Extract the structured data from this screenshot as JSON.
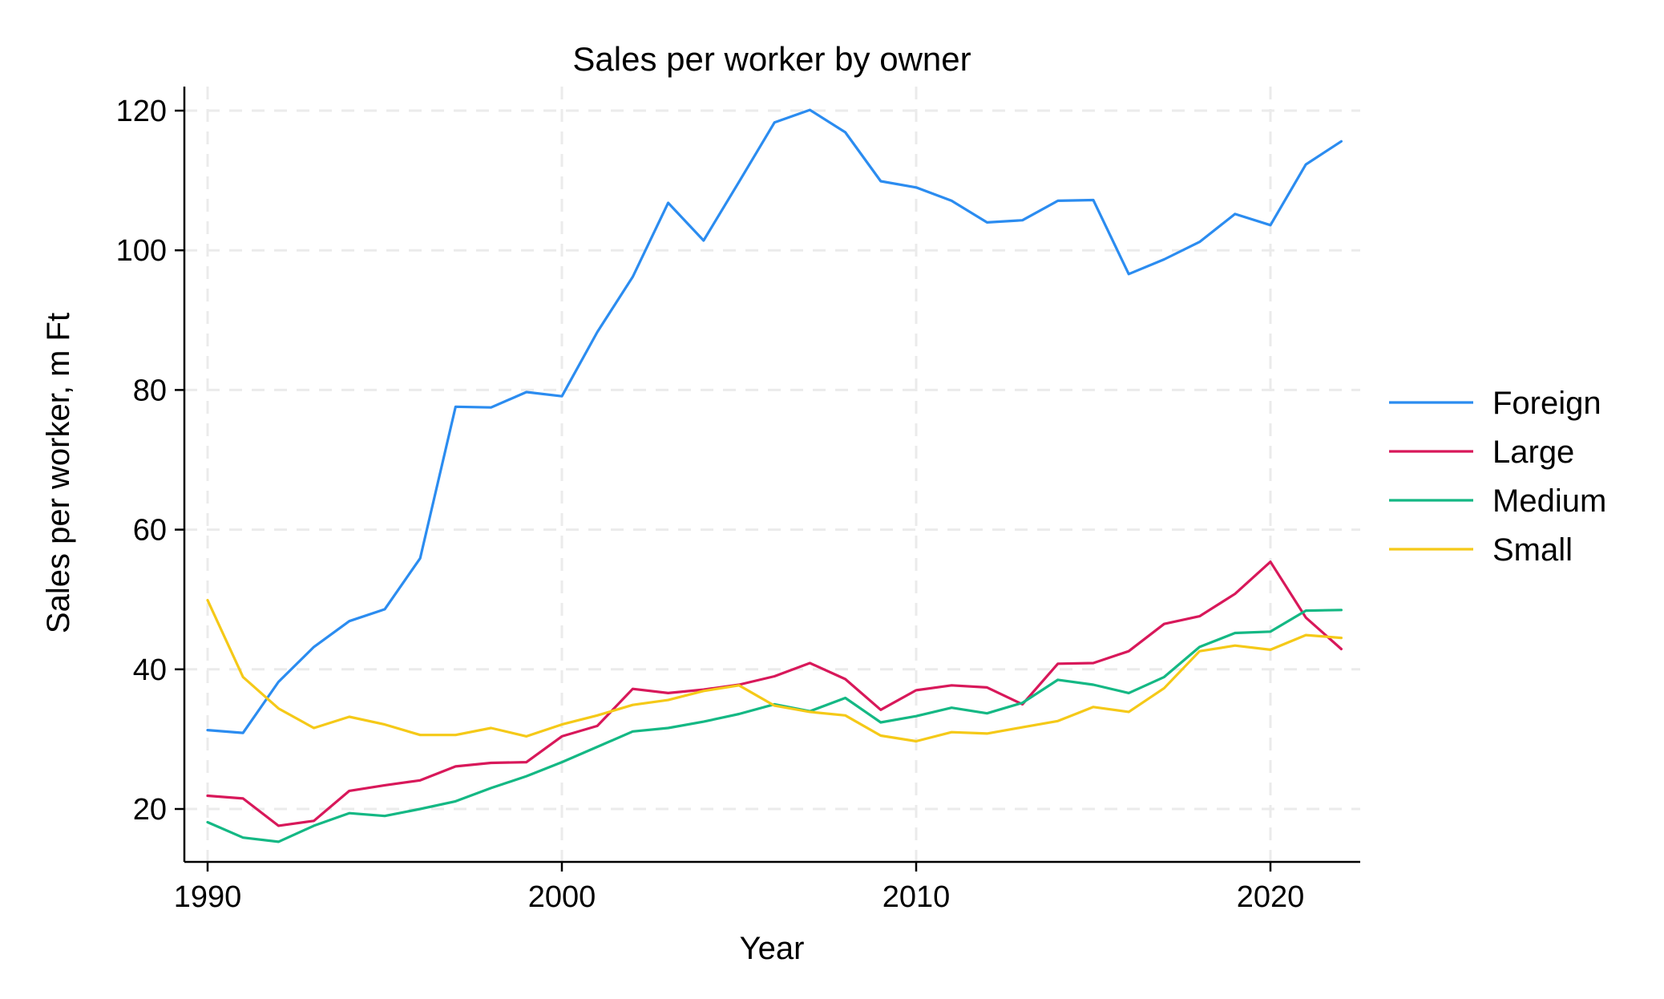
{
  "chart_data": {
    "type": "line",
    "title": "Sales per worker by owner",
    "xlabel": "Year",
    "ylabel": "Sales per worker, m Ft",
    "xlim": [
      1989.2,
      2022.6
    ],
    "ylim": [
      12,
      124
    ],
    "xticks": [
      1990,
      2000,
      2010,
      2020
    ],
    "yticks": [
      20,
      40,
      60,
      80,
      100,
      120
    ],
    "grid": true,
    "legend_position": "right",
    "x": [
      1990,
      1991,
      1992,
      1993,
      1994,
      1995,
      1996,
      1997,
      1998,
      1999,
      2000,
      2001,
      2002,
      2003,
      2004,
      2005,
      2006,
      2007,
      2008,
      2009,
      2010,
      2011,
      2012,
      2013,
      2014,
      2015,
      2016,
      2017,
      2018,
      2019,
      2020,
      2021,
      2022
    ],
    "series": [
      {
        "name": "Foreign",
        "color": "#2b8cf0",
        "values": [
          31.3,
          30.9,
          38.2,
          43.2,
          46.9,
          48.6,
          55.9,
          77.6,
          77.5,
          79.7,
          79.1,
          88.3,
          96.2,
          106.8,
          101.4,
          109.8,
          118.3,
          120.1,
          116.9,
          109.9,
          109.0,
          107.1,
          104.0,
          104.3,
          107.1,
          107.2,
          96.6,
          98.7,
          101.2,
          105.2,
          103.6,
          112.3,
          115.6
        ]
      },
      {
        "name": "Large",
        "color": "#d8185a",
        "values": [
          21.9,
          21.5,
          17.6,
          18.3,
          22.6,
          23.4,
          24.1,
          26.1,
          26.6,
          26.7,
          30.4,
          31.9,
          37.2,
          36.6,
          37.1,
          37.8,
          39.0,
          40.9,
          38.6,
          34.2,
          37.0,
          37.7,
          37.4,
          35.0,
          40.8,
          40.9,
          42.6,
          46.5,
          47.6,
          50.8,
          55.4,
          47.4,
          42.9
        ]
      },
      {
        "name": "Medium",
        "color": "#14b884",
        "values": [
          18.1,
          15.9,
          15.3,
          17.6,
          19.4,
          19.0,
          20.0,
          21.1,
          23.0,
          24.7,
          26.7,
          28.9,
          31.1,
          31.6,
          32.5,
          33.6,
          35.0,
          34.0,
          35.9,
          32.4,
          33.3,
          34.5,
          33.7,
          35.2,
          38.5,
          37.8,
          36.6,
          38.9,
          43.2,
          45.2,
          45.4,
          48.4,
          48.5
        ]
      },
      {
        "name": "Small",
        "color": "#f5c918",
        "values": [
          49.9,
          38.9,
          34.4,
          31.6,
          33.2,
          32.1,
          30.6,
          30.6,
          31.6,
          30.4,
          32.1,
          33.4,
          34.9,
          35.6,
          36.9,
          37.7,
          34.8,
          33.9,
          33.4,
          30.5,
          29.7,
          31.0,
          30.8,
          31.7,
          32.6,
          34.6,
          33.9,
          37.3,
          42.6,
          43.4,
          42.8,
          44.9,
          44.5
        ]
      }
    ]
  }
}
